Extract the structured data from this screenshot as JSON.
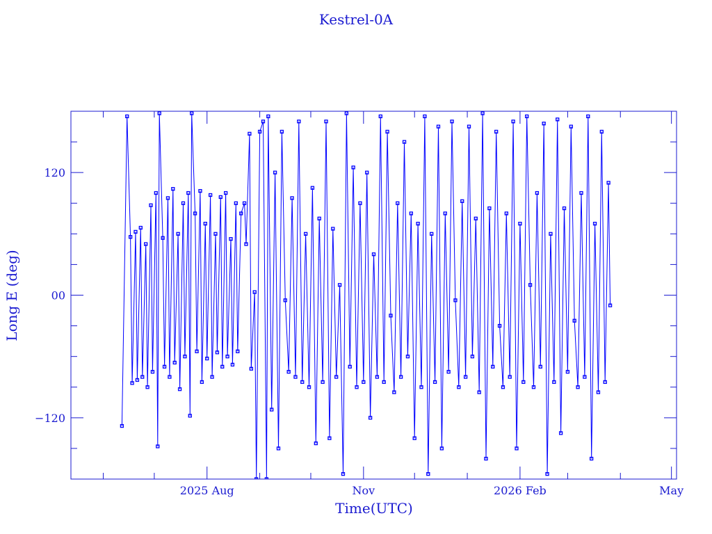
{
  "chart_data": {
    "type": "line",
    "title": "Kestrel-0A",
    "xlabel": "Time(UTC)",
    "ylabel": "Long E (deg)",
    "xlim": [
      "2025-05-13",
      "2026-05-04"
    ],
    "ylim": [
      -180,
      180
    ],
    "grid": false,
    "markers": "square",
    "color": "#0000ff",
    "frame_color": "#1a1ad0",
    "x_ticks": [
      {
        "date": "2025-08-01",
        "label": "2025 Aug"
      },
      {
        "date": "2025-11-01",
        "label": "Nov"
      },
      {
        "date": "2026-02-01",
        "label": "2026 Feb"
      },
      {
        "date": "2026-05-01",
        "label": "May"
      }
    ],
    "y_ticks": [
      {
        "value": 120,
        "label": "120"
      },
      {
        "value": 0,
        "label": "00"
      },
      {
        "value": -120,
        "label": "−120"
      }
    ],
    "series": [
      {
        "x": [
          "2025-06-12",
          "2025-06-15",
          "2025-06-17",
          "2025-06-18",
          "2025-06-20",
          "2025-06-21",
          "2025-06-23",
          "2025-06-24",
          "2025-06-26",
          "2025-06-27",
          "2025-06-29",
          "2025-06-30",
          "2025-07-02",
          "2025-07-03",
          "2025-07-04",
          "2025-07-06",
          "2025-07-07",
          "2025-07-09",
          "2025-07-10",
          "2025-07-12",
          "2025-07-13",
          "2025-07-15",
          "2025-07-16",
          "2025-07-18",
          "2025-07-19",
          "2025-07-21",
          "2025-07-22",
          "2025-07-23",
          "2025-07-25",
          "2025-07-26",
          "2025-07-28",
          "2025-07-29",
          "2025-07-31",
          "2025-08-01",
          "2025-08-03",
          "2025-08-04",
          "2025-08-06",
          "2025-08-07",
          "2025-08-09",
          "2025-08-10",
          "2025-08-12",
          "2025-08-13",
          "2025-08-15",
          "2025-08-16",
          "2025-08-18",
          "2025-08-19",
          "2025-08-21",
          "2025-08-23",
          "2025-08-24",
          "2025-08-26",
          "2025-08-27",
          "2025-08-29",
          "2025-08-30",
          "2025-09-01",
          "2025-09-03",
          "2025-09-05",
          "2025-09-06",
          "2025-09-08",
          "2025-09-10",
          "2025-09-12",
          "2025-09-14",
          "2025-09-16",
          "2025-09-18",
          "2025-09-20",
          "2025-09-22",
          "2025-09-24",
          "2025-09-26",
          "2025-09-28",
          "2025-09-30",
          "2025-10-02",
          "2025-10-04",
          "2025-10-06",
          "2025-10-08",
          "2025-10-10",
          "2025-10-12",
          "2025-10-14",
          "2025-10-16",
          "2025-10-18",
          "2025-10-20",
          "2025-10-22",
          "2025-10-24",
          "2025-10-26",
          "2025-10-28",
          "2025-10-30",
          "2025-11-01",
          "2025-11-03",
          "2025-11-05",
          "2025-11-07",
          "2025-11-09",
          "2025-11-11",
          "2025-11-13",
          "2025-11-15",
          "2025-11-17",
          "2025-11-19",
          "2025-11-21",
          "2025-11-23",
          "2025-11-25",
          "2025-11-27",
          "2025-11-29",
          "2025-12-01",
          "2025-12-03",
          "2025-12-05",
          "2025-12-07",
          "2025-12-09",
          "2025-12-11",
          "2025-12-13",
          "2025-12-15",
          "2025-12-17",
          "2025-12-19",
          "2025-12-21",
          "2025-12-23",
          "2025-12-25",
          "2025-12-27",
          "2025-12-29",
          "2025-12-31",
          "2026-01-02",
          "2026-01-04",
          "2026-01-06",
          "2026-01-08",
          "2026-01-10",
          "2026-01-12",
          "2026-01-14",
          "2026-01-16",
          "2026-01-18",
          "2026-01-20",
          "2026-01-22",
          "2026-01-24",
          "2026-01-26",
          "2026-01-28",
          "2026-01-30",
          "2026-02-01",
          "2026-02-03",
          "2026-02-05",
          "2026-02-07",
          "2026-02-09",
          "2026-02-11",
          "2026-02-13",
          "2026-02-15",
          "2026-02-17",
          "2026-02-19",
          "2026-02-21",
          "2026-02-23",
          "2026-02-25",
          "2026-02-27",
          "2026-03-01",
          "2026-03-03",
          "2026-03-05",
          "2026-03-07",
          "2026-03-09",
          "2026-03-11",
          "2026-03-13",
          "2026-03-15",
          "2026-03-17",
          "2026-03-19",
          "2026-03-21",
          "2026-03-23",
          "2026-03-25",
          "2026-03-26"
        ],
        "y": [
          -128,
          175,
          57,
          -86,
          62,
          -83,
          66,
          -80,
          50,
          -90,
          88,
          -75,
          100,
          -148,
          178,
          56,
          -70,
          95,
          -80,
          104,
          -66,
          60,
          -92,
          90,
          -60,
          100,
          -118,
          178,
          80,
          -55,
          102,
          -85,
          70,
          -62,
          98,
          -80,
          60,
          -56,
          96,
          -70,
          100,
          -60,
          55,
          -68,
          90,
          -55,
          80,
          90,
          50,
          158,
          -72,
          3,
          -180,
          160,
          170,
          -180,
          175,
          -112,
          120,
          -150,
          160,
          -5,
          -75,
          95,
          -80,
          170,
          -85,
          60,
          -90,
          105,
          -145,
          75,
          -85,
          170,
          -140,
          65,
          -80,
          10,
          -175,
          178,
          -70,
          125,
          -90,
          90,
          -85,
          120,
          -120,
          40,
          -80,
          175,
          -85,
          160,
          -20,
          -95,
          90,
          -80,
          150,
          -60,
          80,
          -140,
          70,
          -90,
          175,
          -175,
          60,
          -85,
          165,
          -150,
          80,
          -75,
          170,
          -5,
          -90,
          92,
          -80,
          165,
          -60,
          75,
          -95,
          178,
          -160,
          85,
          -70,
          160,
          -30,
          -90,
          80,
          -80,
          170,
          -150,
          70,
          -85,
          175,
          10,
          -90,
          100,
          -70,
          168,
          -175,
          60,
          -85,
          172,
          -135,
          85,
          -75,
          165,
          -25,
          -90,
          100,
          -80,
          175,
          -160,
          70,
          -95,
          160,
          -85,
          110,
          -10
        ]
      }
    ]
  }
}
